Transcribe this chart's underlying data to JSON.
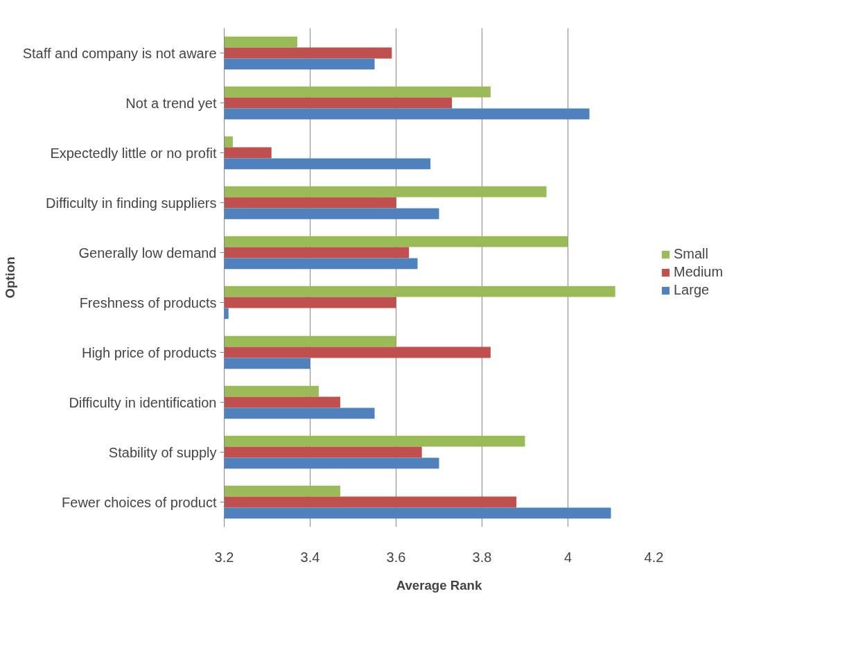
{
  "chart_data": {
    "type": "bar",
    "orientation": "horizontal",
    "xlabel": "Average Rank",
    "ylabel": "Option",
    "categories": [
      "Staff and company is not aware",
      "Not a trend yet",
      "Expectedly little or no profit",
      "Difficulty in finding suppliers",
      "Generally low demand",
      "Freshness of products",
      "High price of products",
      "Difficulty in identification",
      "Stability of supply",
      "Fewer choices of product"
    ],
    "series": [
      {
        "name": "Small",
        "color": "#9bbb59",
        "values": [
          3.37,
          3.82,
          3.22,
          3.95,
          4.0,
          4.11,
          3.6,
          3.42,
          3.9,
          3.47
        ]
      },
      {
        "name": "Medium",
        "color": "#c0504d",
        "values": [
          3.59,
          3.73,
          3.31,
          3.6,
          3.63,
          3.6,
          3.82,
          3.47,
          3.66,
          3.88
        ]
      },
      {
        "name": "Large",
        "color": "#4f81bd",
        "values": [
          3.55,
          4.05,
          3.68,
          3.7,
          3.65,
          3.21,
          3.4,
          3.55,
          3.7,
          4.1
        ]
      }
    ],
    "xlim": [
      3.2,
      4.2
    ],
    "xticks": [
      3.2,
      3.4,
      3.6,
      3.8,
      4,
      4.2
    ],
    "grid": "x",
    "legend": "right"
  }
}
